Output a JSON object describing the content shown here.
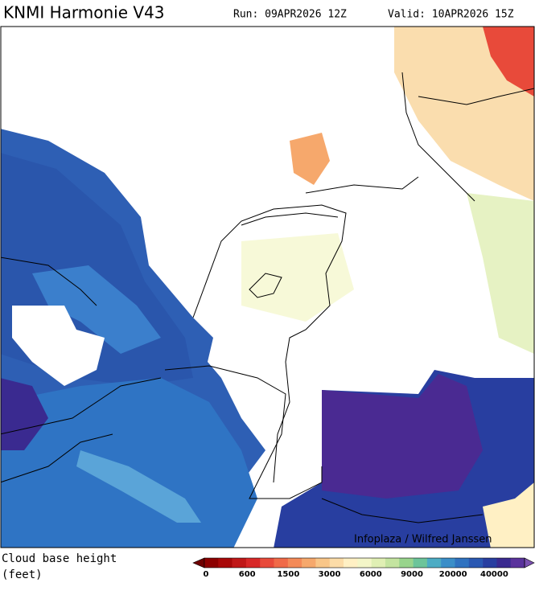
{
  "header": {
    "title": "KNMI Harmonie V43",
    "run": "Run: 09APR2026 12Z",
    "valid": "Valid: 10APR2026 15Z"
  },
  "map": {
    "credit": "Infoplaza / Wilfred Janssen"
  },
  "legend": {
    "label_line1": "Cloud base height",
    "label_line2": "(feet)",
    "ticks": [
      "0",
      "600",
      "1500",
      "3000",
      "6000",
      "9000",
      "20000",
      "40000"
    ],
    "colors": [
      "#6e0000",
      "#8c0000",
      "#a80808",
      "#c01818",
      "#d82828",
      "#e84a3a",
      "#f06a48",
      "#f48a58",
      "#f6a86c",
      "#f9c688",
      "#fcdca8",
      "#fff0c4",
      "#f4f6c8",
      "#e0efb4",
      "#c4e4a0",
      "#98d48c",
      "#6cc49a",
      "#4cacc4",
      "#3a8ec8",
      "#2f72c0",
      "#2a58b2",
      "#283ea0",
      "#3a2a90",
      "#5a329c",
      "#7a50b0"
    ]
  }
}
